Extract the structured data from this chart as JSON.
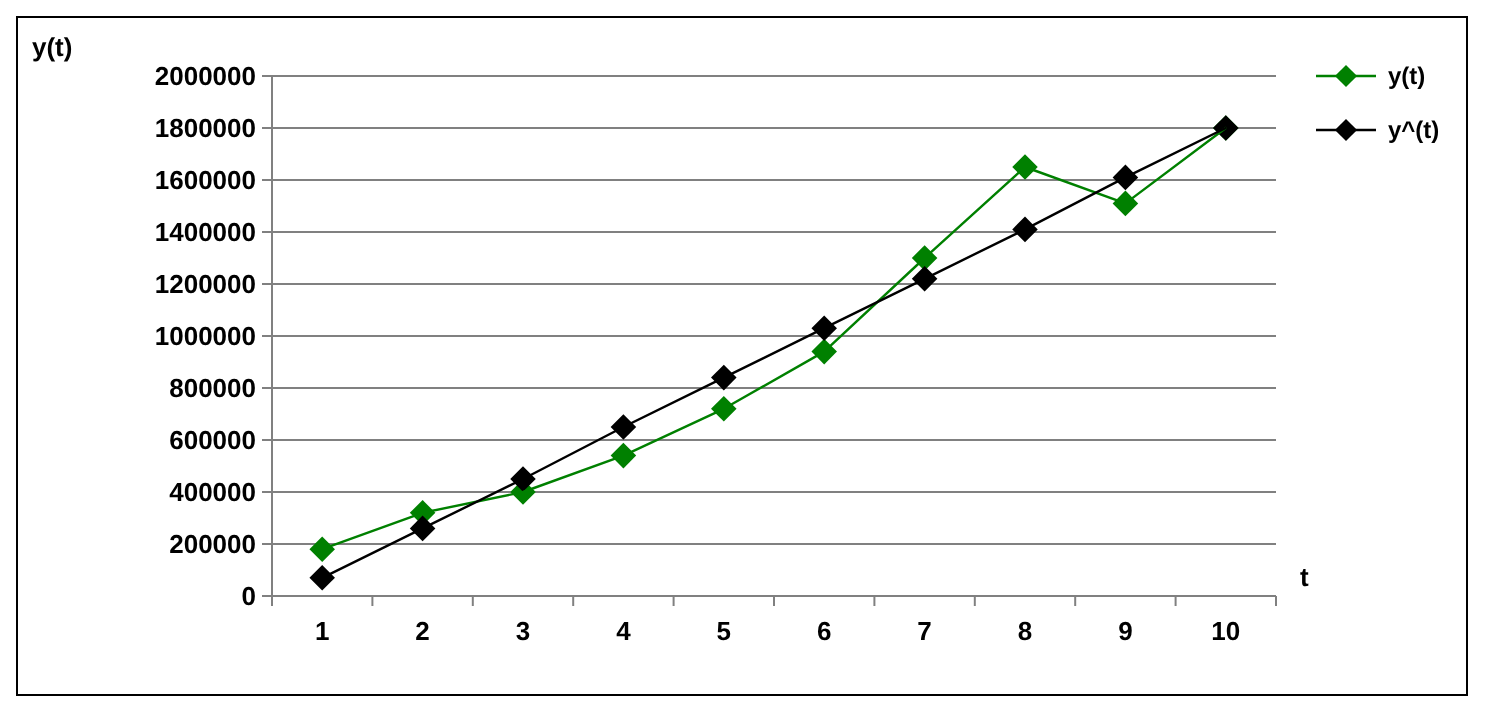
{
  "chart_data": {
    "type": "line",
    "xlabel": "t",
    "ylabel": "y(t)",
    "categories": [
      "1",
      "2",
      "3",
      "4",
      "5",
      "6",
      "7",
      "8",
      "9",
      "10"
    ],
    "series": [
      {
        "name": "y(t)",
        "color": "#008000",
        "values": [
          180000,
          320000,
          400000,
          540000,
          720000,
          940000,
          1300000,
          1650000,
          1510000,
          1800000
        ]
      },
      {
        "name": "y^(t)",
        "color": "#000000",
        "values": [
          70000,
          260000,
          450000,
          650000,
          840000,
          1030000,
          1220000,
          1410000,
          1610000,
          1800000
        ]
      }
    ],
    "ylim": [
      0,
      2000000
    ],
    "yticks": [
      0,
      200000,
      400000,
      600000,
      800000,
      1000000,
      1200000,
      1400000,
      1600000,
      1800000,
      2000000
    ],
    "grid": "y",
    "legend": "top right",
    "marker": "diamond",
    "line_style": "solid"
  }
}
